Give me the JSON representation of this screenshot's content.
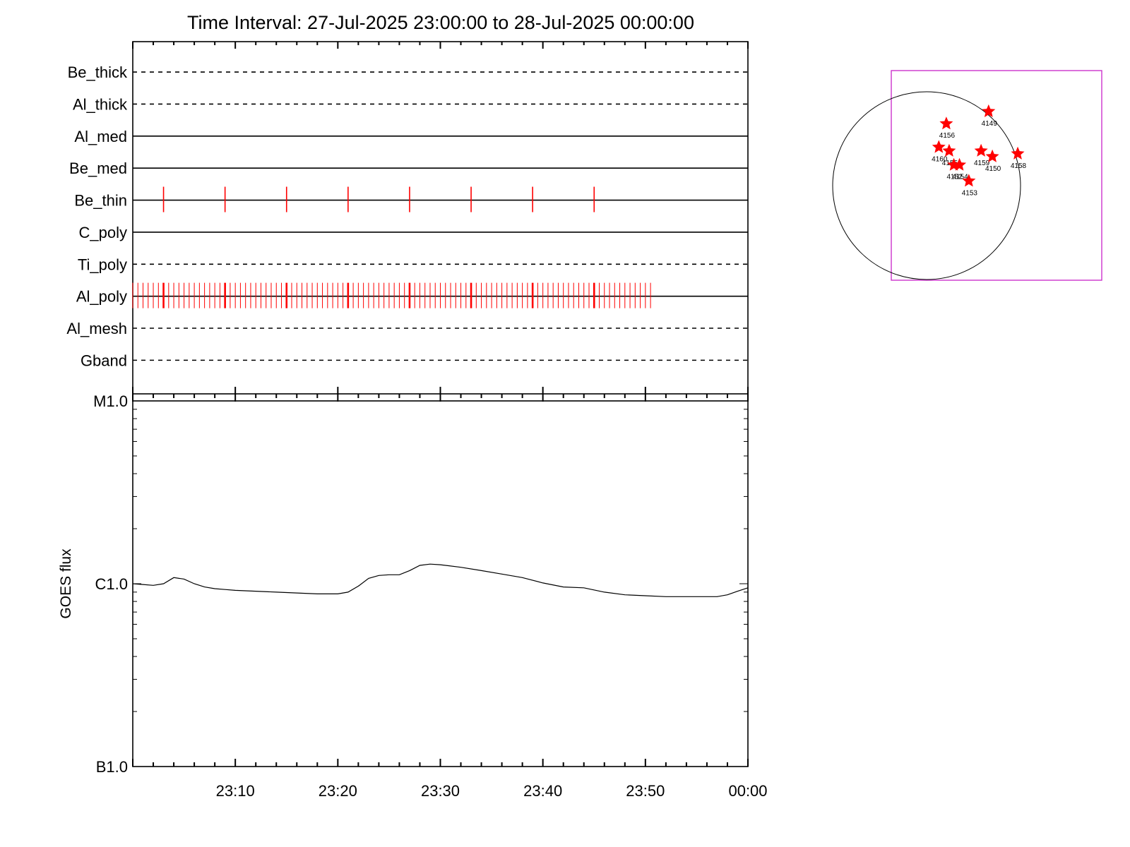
{
  "title": "Time Interval: 27-Jul-2025 23:00:00 to 28-Jul-2025 00:00:00",
  "colors": {
    "event": "#ff0000",
    "fov": "#cc33cc",
    "axis": "#000000",
    "ar_marker": "#ff0000"
  },
  "chart_data": [
    {
      "type": "timeline",
      "x_range_minutes": [
        0,
        60
      ],
      "channels": [
        {
          "name": "Be_thick",
          "style": "dashed",
          "events": []
        },
        {
          "name": "Al_thick",
          "style": "dashed",
          "events": []
        },
        {
          "name": "Al_med",
          "style": "solid",
          "events": []
        },
        {
          "name": "Be_med",
          "style": "solid",
          "events": []
        },
        {
          "name": "Be_thin",
          "style": "solid",
          "events": [
            3,
            9,
            15,
            21,
            27,
            33,
            39,
            45
          ]
        },
        {
          "name": "C_poly",
          "style": "solid",
          "events": []
        },
        {
          "name": "Ti_poly",
          "style": "dashed",
          "events": []
        },
        {
          "name": "Al_poly",
          "style": "solid",
          "events_every_minutes": 0.5,
          "events_range": [
            0,
            50.5
          ],
          "heavy_events": [
            3,
            9,
            15,
            21,
            27,
            33,
            39,
            45
          ]
        },
        {
          "name": "Al_mesh",
          "style": "dashed",
          "events": []
        },
        {
          "name": "Gband",
          "style": "dashed",
          "events": []
        }
      ]
    },
    {
      "type": "line",
      "ylabel": "GOES flux",
      "yscale": "log",
      "ylim": [
        1e-07,
        1e-05
      ],
      "ytick_labels": [
        "B1.0",
        "C1.0",
        "M1.0"
      ],
      "yticks": [
        1e-07,
        1e-06,
        1e-05
      ],
      "xtick_labels": [
        "23:10",
        "23:20",
        "23:30",
        "23:40",
        "23:50",
        "00:00"
      ],
      "xticks": [
        10,
        20,
        30,
        40,
        50,
        60
      ],
      "series": [
        {
          "x": [
            0,
            1,
            2,
            3,
            4,
            5,
            6,
            7,
            8,
            9,
            10,
            12,
            14,
            16,
            18,
            19,
            20,
            21,
            22,
            23,
            24,
            25,
            26,
            27,
            28,
            29,
            30,
            32,
            34,
            36,
            38,
            40,
            42,
            44,
            46,
            48,
            50,
            52,
            54,
            56,
            57,
            58,
            59,
            60
          ],
          "y": [
            1e-06,
            9.9e-07,
            9.8e-07,
            1e-06,
            1.08e-06,
            1.06e-06,
            1e-06,
            9.6e-07,
            9.4e-07,
            9.3e-07,
            9.2e-07,
            9.1e-07,
            9e-07,
            8.9e-07,
            8.8e-07,
            8.8e-07,
            8.8e-07,
            9e-07,
            9.7e-07,
            1.07e-06,
            1.11e-06,
            1.12e-06,
            1.12e-06,
            1.18e-06,
            1.26e-06,
            1.28e-06,
            1.27e-06,
            1.23e-06,
            1.18e-06,
            1.13e-06,
            1.08e-06,
            1.01e-06,
            9.6e-07,
            9.5e-07,
            9e-07,
            8.7e-07,
            8.6e-07,
            8.5e-07,
            8.5e-07,
            8.5e-07,
            8.5e-07,
            8.7e-07,
            9.1e-07,
            9.5e-07
          ]
        }
      ]
    },
    {
      "type": "scatter",
      "description_units": "solar disk map",
      "points": [
        {
          "label": "4149",
          "x": 0.66,
          "y": 0.79
        },
        {
          "label": "4156",
          "x": 0.21,
          "y": 0.66
        },
        {
          "label": "4160",
          "x": 0.13,
          "y": 0.41
        },
        {
          "label": "4155",
          "x": 0.24,
          "y": 0.37
        },
        {
          "label": "4152",
          "x": 0.29,
          "y": 0.22
        },
        {
          "label": "4154",
          "x": 0.35,
          "y": 0.22
        },
        {
          "label": "4153",
          "x": 0.45,
          "y": 0.05
        },
        {
          "label": "4159",
          "x": 0.58,
          "y": 0.37
        },
        {
          "label": "4150",
          "x": 0.7,
          "y": 0.31
        },
        {
          "label": "4158",
          "x": 0.97,
          "y": 0.34
        }
      ]
    }
  ]
}
